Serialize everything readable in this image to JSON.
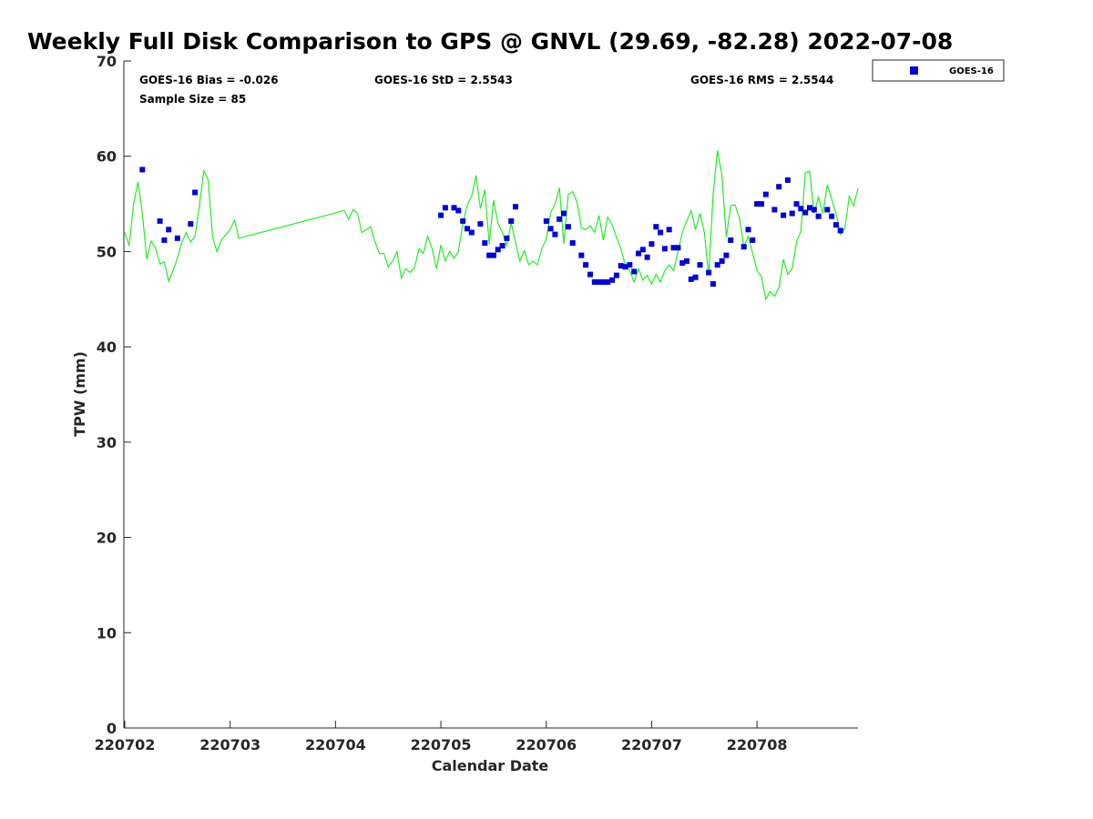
{
  "chart_data": {
    "type": "scatter",
    "title": "Weekly Full Disk Comparison to GPS @ GNVL (29.69, -82.28) 2022-07-08",
    "xlabel": "Calendar Date",
    "ylabel": "TPW (mm)",
    "xlim": [
      "2022-07-02",
      "2022-07-08 23:00"
    ],
    "ylim": [
      0,
      70
    ],
    "x_ticks": [
      "220702",
      "220703",
      "220704",
      "220705",
      "220706",
      "220707",
      "220708"
    ],
    "y_ticks": [
      "0",
      "10",
      "20",
      "30",
      "40",
      "50",
      "60",
      "70"
    ],
    "grid": false,
    "legend_position": "top-right, outside plot",
    "stats": {
      "bias": "GOES-16 Bias = -0.026",
      "std": "GOES-16 StD = 2.5543",
      "rms": "GOES-16 RMS = 2.5544",
      "sample_size": "Sample Size = 85"
    },
    "series": [
      {
        "name": "GOES-16",
        "kind": "scatter",
        "marker": "square",
        "color": "#0000DD",
        "points": [
          [
            "2022-07-02 04:00",
            58.6
          ],
          [
            "2022-07-02 08:00",
            53.2
          ],
          [
            "2022-07-02 09:00",
            51.2
          ],
          [
            "2022-07-02 10:00",
            52.3
          ],
          [
            "2022-07-02 12:00",
            51.4
          ],
          [
            "2022-07-02 15:00",
            52.9
          ],
          [
            "2022-07-02 16:00",
            56.2
          ],
          [
            "2022-07-05 00:00",
            53.8
          ],
          [
            "2022-07-05 01:00",
            54.6
          ],
          [
            "2022-07-05 03:00",
            54.6
          ],
          [
            "2022-07-05 04:00",
            54.3
          ],
          [
            "2022-07-05 05:00",
            53.2
          ],
          [
            "2022-07-05 06:00",
            52.4
          ],
          [
            "2022-07-05 07:00",
            52.0
          ],
          [
            "2022-07-05 09:00",
            52.9
          ],
          [
            "2022-07-05 10:00",
            50.9
          ],
          [
            "2022-07-05 11:00",
            49.6
          ],
          [
            "2022-07-05 12:00",
            49.6
          ],
          [
            "2022-07-05 13:00",
            50.2
          ],
          [
            "2022-07-05 14:00",
            50.6
          ],
          [
            "2022-07-05 15:00",
            51.4
          ],
          [
            "2022-07-05 16:00",
            53.2
          ],
          [
            "2022-07-05 17:00",
            54.7
          ],
          [
            "2022-07-06 00:00",
            53.2
          ],
          [
            "2022-07-06 01:00",
            52.4
          ],
          [
            "2022-07-06 02:00",
            51.8
          ],
          [
            "2022-07-06 03:00",
            53.4
          ],
          [
            "2022-07-06 04:00",
            54.0
          ],
          [
            "2022-07-06 05:00",
            52.6
          ],
          [
            "2022-07-06 06:00",
            50.9
          ],
          [
            "2022-07-06 08:00",
            49.6
          ],
          [
            "2022-07-06 09:00",
            48.6
          ],
          [
            "2022-07-06 10:00",
            47.6
          ],
          [
            "2022-07-06 11:00",
            46.8
          ],
          [
            "2022-07-06 12:00",
            46.8
          ],
          [
            "2022-07-06 13:00",
            46.8
          ],
          [
            "2022-07-06 14:00",
            46.8
          ],
          [
            "2022-07-06 15:00",
            47.0
          ],
          [
            "2022-07-06 16:00",
            47.5
          ],
          [
            "2022-07-06 17:00",
            48.5
          ],
          [
            "2022-07-06 18:00",
            48.4
          ],
          [
            "2022-07-06 19:00",
            48.6
          ],
          [
            "2022-07-06 20:00",
            47.9
          ],
          [
            "2022-07-06 21:00",
            49.8
          ],
          [
            "2022-07-06 22:00",
            50.2
          ],
          [
            "2022-07-06 23:00",
            49.4
          ],
          [
            "2022-07-07 00:00",
            50.8
          ],
          [
            "2022-07-07 01:00",
            52.6
          ],
          [
            "2022-07-07 02:00",
            52.0
          ],
          [
            "2022-07-07 03:00",
            50.3
          ],
          [
            "2022-07-07 04:00",
            52.3
          ],
          [
            "2022-07-07 05:00",
            50.4
          ],
          [
            "2022-07-07 06:00",
            50.4
          ],
          [
            "2022-07-07 07:00",
            48.8
          ],
          [
            "2022-07-07 08:00",
            49.0
          ],
          [
            "2022-07-07 09:00",
            47.1
          ],
          [
            "2022-07-07 10:00",
            47.3
          ],
          [
            "2022-07-07 11:00",
            48.6
          ],
          [
            "2022-07-07 13:00",
            47.8
          ],
          [
            "2022-07-07 14:00",
            46.6
          ],
          [
            "2022-07-07 15:00",
            48.6
          ],
          [
            "2022-07-07 16:00",
            49.0
          ],
          [
            "2022-07-07 17:00",
            49.6
          ],
          [
            "2022-07-07 18:00",
            51.2
          ],
          [
            "2022-07-07 21:00",
            50.5
          ],
          [
            "2022-07-07 22:00",
            52.3
          ],
          [
            "2022-07-07 23:00",
            51.2
          ],
          [
            "2022-07-08 00:00",
            55.0
          ],
          [
            "2022-07-08 01:00",
            55.0
          ],
          [
            "2022-07-08 02:00",
            56.0
          ],
          [
            "2022-07-08 04:00",
            54.4
          ],
          [
            "2022-07-08 05:00",
            56.8
          ],
          [
            "2022-07-08 06:00",
            53.8
          ],
          [
            "2022-07-08 07:00",
            57.5
          ],
          [
            "2022-07-08 08:00",
            54.0
          ],
          [
            "2022-07-08 09:00",
            55.0
          ],
          [
            "2022-07-08 10:00",
            54.5
          ],
          [
            "2022-07-08 11:00",
            54.1
          ],
          [
            "2022-07-08 12:00",
            54.6
          ],
          [
            "2022-07-08 13:00",
            54.4
          ],
          [
            "2022-07-08 14:00",
            53.7
          ],
          [
            "2022-07-08 16:00",
            54.4
          ],
          [
            "2022-07-08 17:00",
            53.7
          ],
          [
            "2022-07-08 18:00",
            52.8
          ],
          [
            "2022-07-08 19:00",
            52.2
          ]
        ]
      },
      {
        "kind": "line",
        "color": "#22EE22",
        "points": [
          [
            "2022-07-02 00:00",
            52.0
          ],
          [
            "2022-07-02 01:00",
            50.6
          ],
          [
            "2022-07-02 02:00",
            55.0
          ],
          [
            "2022-07-02 03:00",
            57.3
          ],
          [
            "2022-07-02 04:00",
            54.0
          ],
          [
            "2022-07-02 05:00",
            49.2
          ],
          [
            "2022-07-02 06:00",
            51.1
          ],
          [
            "2022-07-02 07:00",
            50.4
          ],
          [
            "2022-07-02 08:00",
            48.7
          ],
          [
            "2022-07-02 09:00",
            48.9
          ],
          [
            "2022-07-02 10:00",
            46.9
          ],
          [
            "2022-07-02 11:00",
            48.0
          ],
          [
            "2022-07-02 12:00",
            49.3
          ],
          [
            "2022-07-02 13:00",
            51.0
          ],
          [
            "2022-07-02 14:00",
            52.0
          ],
          [
            "2022-07-02 15:00",
            51.0
          ],
          [
            "2022-07-02 16:00",
            51.6
          ],
          [
            "2022-07-02 17:00",
            54.8
          ],
          [
            "2022-07-02 18:00",
            58.5
          ],
          [
            "2022-07-02 19:00",
            57.5
          ],
          [
            "2022-07-02 20:00",
            51.5
          ],
          [
            "2022-07-02 21:00",
            50.0
          ],
          [
            "2022-07-02 22:00",
            51.2
          ],
          [
            "2022-07-03 00:00",
            52.3
          ],
          [
            "2022-07-03 01:00",
            53.3
          ],
          [
            "2022-07-03 02:00",
            51.4
          ],
          [
            "2022-07-04 02:00",
            54.3
          ],
          [
            "2022-07-04 03:00",
            53.4
          ],
          [
            "2022-07-04 04:00",
            54.4
          ],
          [
            "2022-07-04 05:00",
            54.0
          ],
          [
            "2022-07-04 06:00",
            52.0
          ],
          [
            "2022-07-04 08:00",
            52.6
          ],
          [
            "2022-07-04 09:00",
            51.0
          ],
          [
            "2022-07-04 10:00",
            49.8
          ],
          [
            "2022-07-04 11:00",
            49.8
          ],
          [
            "2022-07-04 12:00",
            48.4
          ],
          [
            "2022-07-04 13:00",
            49.0
          ],
          [
            "2022-07-04 14:00",
            50.0
          ],
          [
            "2022-07-04 15:00",
            47.2
          ],
          [
            "2022-07-04 16:00",
            48.2
          ],
          [
            "2022-07-04 17:00",
            47.8
          ],
          [
            "2022-07-04 18:00",
            48.3
          ],
          [
            "2022-07-04 19:00",
            50.3
          ],
          [
            "2022-07-04 20:00",
            49.8
          ],
          [
            "2022-07-04 21:00",
            51.6
          ],
          [
            "2022-07-04 22:00",
            50.3
          ],
          [
            "2022-07-04 23:00",
            48.2
          ],
          [
            "2022-07-05 00:00",
            50.7
          ],
          [
            "2022-07-05 01:00",
            49.0
          ],
          [
            "2022-07-05 02:00",
            50.0
          ],
          [
            "2022-07-05 03:00",
            49.3
          ],
          [
            "2022-07-05 04:00",
            50.0
          ],
          [
            "2022-07-05 05:00",
            53.0
          ],
          [
            "2022-07-05 06:00",
            54.9
          ],
          [
            "2022-07-05 07:00",
            55.8
          ],
          [
            "2022-07-05 08:00",
            58.0
          ],
          [
            "2022-07-05 09:00",
            54.5
          ],
          [
            "2022-07-05 10:00",
            56.5
          ],
          [
            "2022-07-05 11:00",
            50.8
          ],
          [
            "2022-07-05 12:00",
            55.4
          ],
          [
            "2022-07-05 13:00",
            53.0
          ],
          [
            "2022-07-05 14:00",
            52.0
          ],
          [
            "2022-07-05 15:00",
            50.6
          ],
          [
            "2022-07-05 16:00",
            53.0
          ],
          [
            "2022-07-05 17:00",
            51.0
          ],
          [
            "2022-07-05 18:00",
            49.0
          ],
          [
            "2022-07-05 19:00",
            50.1
          ],
          [
            "2022-07-05 20:00",
            48.6
          ],
          [
            "2022-07-05 21:00",
            49.0
          ],
          [
            "2022-07-05 22:00",
            48.6
          ],
          [
            "2022-07-05 23:00",
            50.3
          ],
          [
            "2022-07-06 00:00",
            51.3
          ],
          [
            "2022-07-06 01:00",
            54.1
          ],
          [
            "2022-07-06 02:00",
            55.0
          ],
          [
            "2022-07-06 03:00",
            56.7
          ],
          [
            "2022-07-06 04:00",
            50.8
          ],
          [
            "2022-07-06 05:00",
            56.0
          ],
          [
            "2022-07-06 06:00",
            56.3
          ],
          [
            "2022-07-06 07:00",
            55.2
          ],
          [
            "2022-07-06 08:00",
            52.5
          ],
          [
            "2022-07-06 09:00",
            52.3
          ],
          [
            "2022-07-06 10:00",
            52.7
          ],
          [
            "2022-07-06 11:00",
            52.0
          ],
          [
            "2022-07-06 12:00",
            53.8
          ],
          [
            "2022-07-06 13:00",
            51.2
          ],
          [
            "2022-07-06 14:00",
            53.6
          ],
          [
            "2022-07-06 15:00",
            52.8
          ],
          [
            "2022-07-06 16:00",
            51.5
          ],
          [
            "2022-07-06 17:00",
            50.3
          ],
          [
            "2022-07-06 18:00",
            48.6
          ],
          [
            "2022-07-06 19:00",
            48.0
          ],
          [
            "2022-07-06 20:00",
            46.8
          ],
          [
            "2022-07-06 21:00",
            48.2
          ],
          [
            "2022-07-06 22:00",
            47.0
          ],
          [
            "2022-07-06 23:00",
            47.5
          ],
          [
            "2022-07-07 00:00",
            46.6
          ],
          [
            "2022-07-07 01:00",
            47.6
          ],
          [
            "2022-07-07 02:00",
            46.8
          ],
          [
            "2022-07-07 03:00",
            48.0
          ],
          [
            "2022-07-07 04:00",
            48.6
          ],
          [
            "2022-07-07 05:00",
            48.0
          ],
          [
            "2022-07-07 06:00",
            50.0
          ],
          [
            "2022-07-07 07:00",
            52.0
          ],
          [
            "2022-07-07 08:00",
            53.2
          ],
          [
            "2022-07-07 09:00",
            54.3
          ],
          [
            "2022-07-07 10:00",
            52.3
          ],
          [
            "2022-07-07 11:00",
            54.0
          ],
          [
            "2022-07-07 12:00",
            52.0
          ],
          [
            "2022-07-07 13:00",
            47.5
          ],
          [
            "2022-07-07 14:00",
            56.0
          ],
          [
            "2022-07-07 15:00",
            60.6
          ],
          [
            "2022-07-07 16:00",
            58.0
          ],
          [
            "2022-07-07 17:00",
            51.5
          ],
          [
            "2022-07-07 18:00",
            54.8
          ],
          [
            "2022-07-07 19:00",
            54.9
          ],
          [
            "2022-07-07 20:00",
            53.5
          ],
          [
            "2022-07-07 21:00",
            50.5
          ],
          [
            "2022-07-07 22:00",
            51.6
          ],
          [
            "2022-07-07 23:00",
            49.8
          ],
          [
            "2022-07-08 00:00",
            48.0
          ],
          [
            "2022-07-08 01:00",
            47.4
          ],
          [
            "2022-07-08 02:00",
            45.0
          ],
          [
            "2022-07-08 03:00",
            45.8
          ],
          [
            "2022-07-08 04:00",
            45.3
          ],
          [
            "2022-07-08 05:00",
            46.2
          ],
          [
            "2022-07-08 06:00",
            49.2
          ],
          [
            "2022-07-08 07:00",
            47.6
          ],
          [
            "2022-07-08 08:00",
            48.2
          ],
          [
            "2022-07-08 09:00",
            51.0
          ],
          [
            "2022-07-08 10:00",
            52.1
          ],
          [
            "2022-07-08 11:00",
            58.3
          ],
          [
            "2022-07-08 12:00",
            58.4
          ],
          [
            "2022-07-08 13:00",
            54.0
          ],
          [
            "2022-07-08 14:00",
            55.7
          ],
          [
            "2022-07-08 15:00",
            54.0
          ],
          [
            "2022-07-08 16:00",
            57.0
          ],
          [
            "2022-07-08 17:00",
            55.5
          ],
          [
            "2022-07-08 18:00",
            54.0
          ],
          [
            "2022-07-08 19:00",
            51.8
          ],
          [
            "2022-07-08 20:00",
            52.4
          ],
          [
            "2022-07-08 21:00",
            55.8
          ],
          [
            "2022-07-08 22:00",
            54.8
          ],
          [
            "2022-07-08 23:00",
            56.6
          ]
        ]
      }
    ]
  }
}
